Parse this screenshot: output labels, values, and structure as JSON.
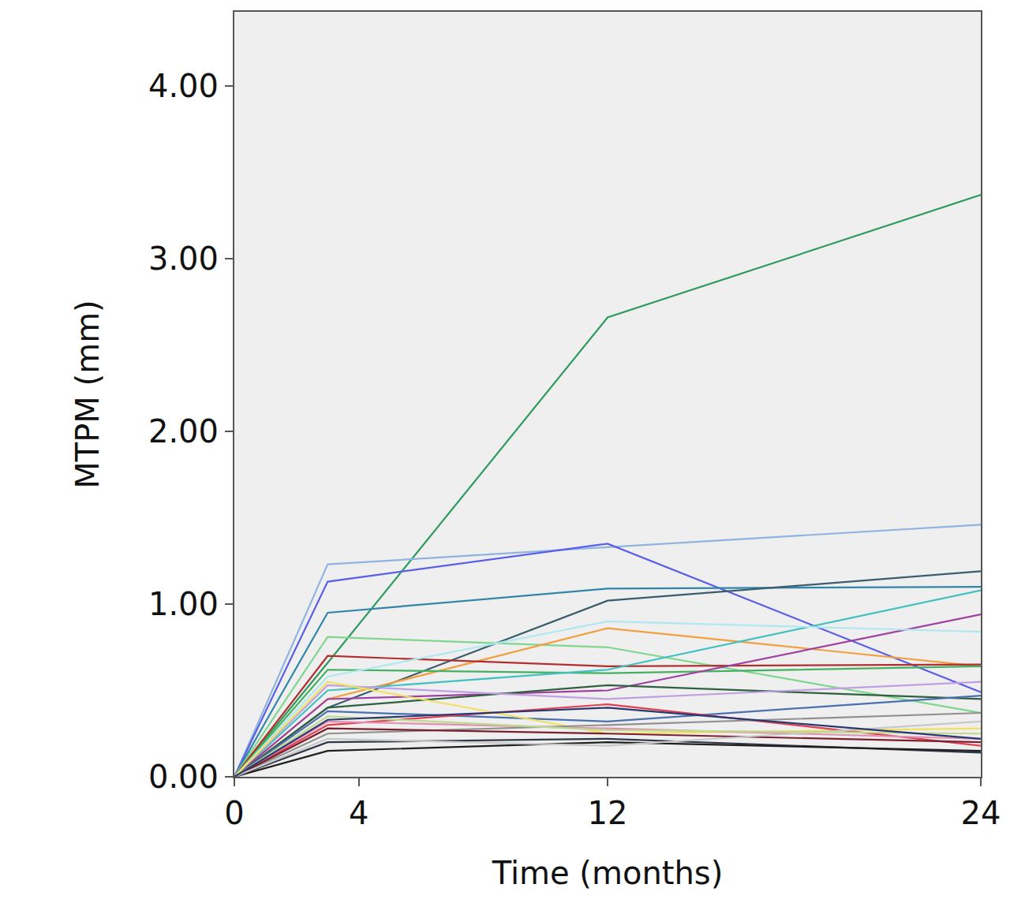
{
  "chart_data": {
    "type": "line",
    "x_label": "Time (months)",
    "y_label": "MTPM (mm)",
    "x": [
      0,
      3,
      12,
      24
    ],
    "xlim": [
      0,
      24
    ],
    "xticks": [
      0,
      4,
      12,
      24
    ],
    "ylim": [
      0,
      4.43
    ],
    "yticks": [
      {
        "value": 0,
        "label": "0.00"
      },
      {
        "value": 1,
        "label": "1.00"
      },
      {
        "value": 2,
        "label": "2.00"
      },
      {
        "value": 3,
        "label": "3.00"
      },
      {
        "value": 4,
        "label": "4.00"
      }
    ],
    "grid": false,
    "series": [
      {
        "color": "#2e9a5e",
        "values": [
          0,
          0.66,
          2.66,
          3.37
        ]
      },
      {
        "color": "#8fb4e0",
        "values": [
          0,
          1.23,
          1.33,
          1.46
        ]
      },
      {
        "color": "#5a5ee8",
        "values": [
          0,
          1.13,
          1.35,
          0.49
        ]
      },
      {
        "color": "#2f86a8",
        "values": [
          0,
          0.95,
          1.09,
          1.1
        ]
      },
      {
        "color": "#3b5e6e",
        "values": [
          0,
          0.4,
          1.02,
          1.19
        ]
      },
      {
        "color": "#7fd68f",
        "values": [
          0,
          0.81,
          0.75,
          0.37
        ]
      },
      {
        "color": "#f0a040",
        "values": [
          0,
          0.45,
          0.86,
          0.64
        ]
      },
      {
        "color": "#b03030",
        "values": [
          0,
          0.7,
          0.64,
          0.65
        ]
      },
      {
        "color": "#44b060",
        "values": [
          0,
          0.62,
          0.6,
          0.64
        ]
      },
      {
        "color": "#40c0c0",
        "values": [
          0,
          0.5,
          0.62,
          1.08
        ]
      },
      {
        "color": "#a040a0",
        "values": [
          0,
          0.45,
          0.5,
          0.94
        ]
      },
      {
        "color": "#b0e8f0",
        "values": [
          0,
          0.58,
          0.9,
          0.84
        ]
      },
      {
        "color": "#2f6040",
        "values": [
          0,
          0.4,
          0.53,
          0.45
        ]
      },
      {
        "color": "#c0a0e0",
        "values": [
          0,
          0.53,
          0.45,
          0.55
        ]
      },
      {
        "color": "#4a70b0",
        "values": [
          0,
          0.38,
          0.32,
          0.47
        ]
      },
      {
        "color": "#f0e060",
        "values": [
          0,
          0.55,
          0.25,
          0.28
        ]
      },
      {
        "color": "#e04050",
        "values": [
          0,
          0.3,
          0.42,
          0.18
        ]
      },
      {
        "color": "#e090b0",
        "values": [
          0,
          0.32,
          0.28,
          0.22
        ]
      },
      {
        "color": "#303848",
        "values": [
          0,
          0.2,
          0.22,
          0.14
        ]
      },
      {
        "color": "#202020",
        "values": [
          0,
          0.15,
          0.2,
          0.15
        ]
      },
      {
        "color": "#909090",
        "values": [
          0,
          0.25,
          0.3,
          0.37
        ]
      },
      {
        "color": "#7a2030",
        "values": [
          0,
          0.28,
          0.25,
          0.2
        ]
      },
      {
        "color": "#c8c8c8",
        "values": [
          0,
          0.22,
          0.18,
          0.32
        ]
      },
      {
        "color": "#c0d890",
        "values": [
          0,
          0.35,
          0.27,
          0.25
        ]
      },
      {
        "color": "#283870",
        "values": [
          0,
          0.33,
          0.4,
          0.22
        ]
      }
    ]
  }
}
